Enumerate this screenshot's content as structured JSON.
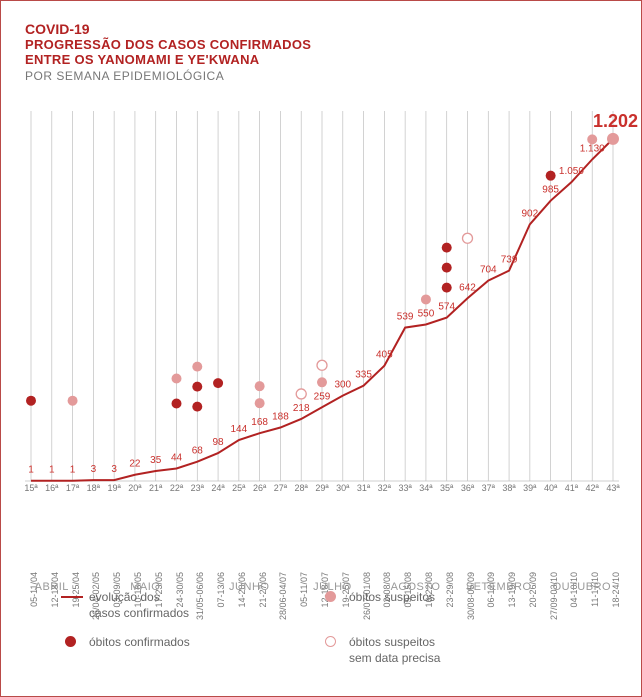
{
  "colors": {
    "primary_red": "#b22222",
    "label_red": "#c9302c",
    "pink": "#e39a9a",
    "gray_text": "#777777",
    "light_gray": "#bfbfbf",
    "month_gray": "#999999",
    "border": "#b94a48",
    "background": "#ffffff"
  },
  "typography": {
    "title_fontsize": 14,
    "line_title_fontsize": 13,
    "subtitle_fontsize": 12,
    "value_label_fontsize": 10,
    "final_value_fontsize": 18,
    "axis_fontsize": 9,
    "month_fontsize": 11,
    "legend_fontsize": 12
  },
  "titles": {
    "covid": "COVID-19",
    "line1": "PROGRESSÃO DOS CASOS CONFIRMADOS",
    "line2": "ENTRE OS YANOMAMI E YE'KWANA",
    "subtitle": "POR SEMANA EPIDEMIOLÓGICA"
  },
  "chart": {
    "type": "line+markers",
    "ylim": [
      0,
      1300
    ],
    "final_label": "1.202",
    "line_width": 2,
    "marker_radius": 5,
    "gridline_color": "#bfbfbf",
    "gridline_width": 0.7,
    "series": [
      {
        "week": "15ª",
        "date": "05-11/04",
        "value": 1,
        "label": "1"
      },
      {
        "week": "16ª",
        "date": "12-18/04",
        "value": 1,
        "label": "1"
      },
      {
        "week": "17ª",
        "date": "19-25/04",
        "value": 1,
        "label": "1"
      },
      {
        "week": "18ª",
        "date": "26/04-02/05",
        "value": 3,
        "label": "3"
      },
      {
        "week": "19ª",
        "date": "03-09/05",
        "value": 3,
        "label": "3"
      },
      {
        "week": "20ª",
        "date": "10-16/05",
        "value": 22,
        "label": "22"
      },
      {
        "week": "21ª",
        "date": "17-23/05",
        "value": 35,
        "label": "35"
      },
      {
        "week": "22ª",
        "date": "24-30/05",
        "value": 44,
        "label": "44"
      },
      {
        "week": "23ª",
        "date": "31/05-06/06",
        "value": 68,
        "label": "68"
      },
      {
        "week": "24ª",
        "date": "07-13/06",
        "value": 98,
        "label": "98"
      },
      {
        "week": "25ª",
        "date": "14-20/06",
        "value": 144,
        "label": "144"
      },
      {
        "week": "26ª",
        "date": "21-27/06",
        "value": 168,
        "label": "168"
      },
      {
        "week": "27ª",
        "date": "28/06-04/07",
        "value": 188,
        "label": "188"
      },
      {
        "week": "28ª",
        "date": "05-11/07",
        "value": 218,
        "label": "218"
      },
      {
        "week": "29ª",
        "date": "12-18/07",
        "value": 259,
        "label": "259"
      },
      {
        "week": "30ª",
        "date": "19-25/07",
        "value": 300,
        "label": "300"
      },
      {
        "week": "31ª",
        "date": "26/07-01/08",
        "value": 335,
        "label": "335"
      },
      {
        "week": "32ª",
        "date": "02-08/08",
        "value": 405,
        "label": "405"
      },
      {
        "week": "33ª",
        "date": "09-15/08",
        "value": 539,
        "label": "539"
      },
      {
        "week": "34ª",
        "date": "16-22/08",
        "value": 550,
        "label": "550"
      },
      {
        "week": "35ª",
        "date": "23-29/08",
        "value": 574,
        "label": "574"
      },
      {
        "week": "36ª",
        "date": "30/08-05/09",
        "value": 642,
        "label": "642"
      },
      {
        "week": "37ª",
        "date": "06-12/09",
        "value": 704,
        "label": "704"
      },
      {
        "week": "38ª",
        "date": "13-19/09",
        "value": 739,
        "label": "739"
      },
      {
        "week": "39ª",
        "date": "20-26/09",
        "value": 902,
        "label": "902"
      },
      {
        "week": "40ª",
        "date": "27/09-03/10",
        "value": 985,
        "label": "985"
      },
      {
        "week": "41ª",
        "date": "04-10/10",
        "value": 1050,
        "label": "1.050"
      },
      {
        "week": "42ª",
        "date": "11-17/10",
        "value": 1130,
        "label": "1.130"
      },
      {
        "week": "43ª",
        "date": "18-24/10",
        "value": 1202,
        "label": ""
      }
    ],
    "confirmed_deaths": [
      {
        "xi": 0,
        "y_offset": 80
      },
      {
        "xi": 7,
        "y_offset": 65
      },
      {
        "xi": 8,
        "y_offset": 55
      },
      {
        "xi": 8,
        "y_offset": 75
      },
      {
        "xi": 9,
        "y_offset": 70
      },
      {
        "xi": 20,
        "y_offset": 30
      },
      {
        "xi": 20,
        "y_offset": 50
      },
      {
        "xi": 20,
        "y_offset": 70
      },
      {
        "xi": 25,
        "y_offset": 25
      }
    ],
    "suspected_deaths": [
      {
        "xi": 2,
        "y_offset": 80
      },
      {
        "xi": 7,
        "y_offset": 90
      },
      {
        "xi": 8,
        "y_offset": 95
      },
      {
        "xi": 11,
        "y_offset": 30
      },
      {
        "xi": 11,
        "y_offset": 47
      },
      {
        "xi": 14,
        "y_offset": 25
      },
      {
        "xi": 19,
        "y_offset": 25
      },
      {
        "xi": 27,
        "y_offset": 20
      }
    ],
    "suspected_deaths_nodate": [
      {
        "xi": 13,
        "y_offset": 25
      },
      {
        "xi": 14,
        "y_offset": 42
      },
      {
        "xi": 21,
        "y_offset": 60
      }
    ],
    "months": [
      {
        "label": "ABRIL",
        "center_xi": 1
      },
      {
        "label": "MAIO",
        "center_xi": 5.5
      },
      {
        "label": "JUNHO",
        "center_xi": 10.5
      },
      {
        "label": "JULHO",
        "center_xi": 14.5
      },
      {
        "label": "AGOSTO",
        "center_xi": 18.5
      },
      {
        "label": "SETEMBRO",
        "center_xi": 22.5
      },
      {
        "label": "OUTUBRO",
        "center_xi": 26.5
      }
    ]
  },
  "legend": {
    "evolution": "evolução dos\ncasos confirmados",
    "confirmed_deaths": "óbitos confirmados",
    "suspected_deaths": "óbitos suspeitos",
    "suspected_nodate": "óbitos suspeitos\nsem data precisa"
  }
}
